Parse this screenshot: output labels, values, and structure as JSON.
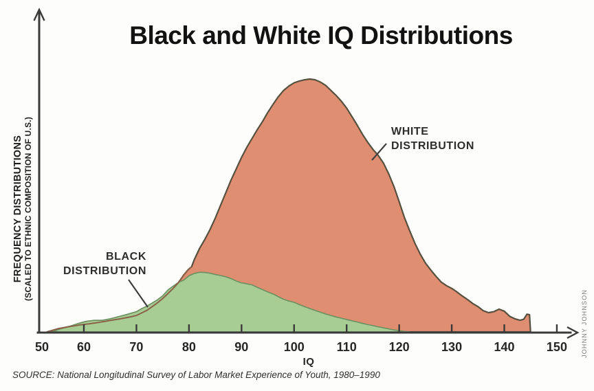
{
  "chart_data": {
    "type": "area",
    "title": "Black and White IQ Distributions",
    "xlabel": "IQ",
    "ylabel": "FREQUENCY DISTRIBUTIONS (SCALED TO ETHNIC COMPOSITION OF U.S.)",
    "ylabel_lines": [
      "FREQUENCY DISTRIBUTIONS",
      "(SCALED TO ETHNIC COMPOSITION OF U.S.)"
    ],
    "xlim": [
      50,
      150
    ],
    "x_ticks": [
      50,
      60,
      70,
      80,
      90,
      100,
      110,
      120,
      130,
      140,
      150
    ],
    "grid": false,
    "y_axis_unlabeled": true,
    "source": "SOURCE: National Longitudinal Survey of Labor Market Experience of Youth, 1980–1990",
    "credit": "JOHNNY JOHNSON",
    "series": [
      {
        "name": "WHITE DISTRIBUTION",
        "label_lines": [
          "WHITE",
          "DISTRIBUTION"
        ],
        "fill": "#e08e71",
        "outline": "#57503f",
        "outline_through_green": "#8a6248",
        "points": [
          [
            53,
            0
          ],
          [
            55,
            0.012
          ],
          [
            57,
            0.02
          ],
          [
            59,
            0.027
          ],
          [
            61,
            0.032
          ],
          [
            63,
            0.038
          ],
          [
            65,
            0.045
          ],
          [
            67,
            0.052
          ],
          [
            69,
            0.06
          ],
          [
            70,
            0.065
          ],
          [
            71,
            0.075
          ],
          [
            72,
            0.085
          ],
          [
            73,
            0.1
          ],
          [
            74,
            0.115
          ],
          [
            75,
            0.132
          ],
          [
            76,
            0.152
          ],
          [
            77,
            0.172
          ],
          [
            78,
            0.195
          ],
          [
            79,
            0.225
          ],
          [
            79.8,
            0.245
          ],
          [
            80.5,
            0.258
          ],
          [
            81,
            0.285
          ],
          [
            82,
            0.33
          ],
          [
            83,
            0.365
          ],
          [
            84,
            0.405
          ],
          [
            85,
            0.45
          ],
          [
            86,
            0.5
          ],
          [
            87,
            0.55
          ],
          [
            88,
            0.6
          ],
          [
            89,
            0.645
          ],
          [
            90,
            0.69
          ],
          [
            91,
            0.73
          ],
          [
            92,
            0.765
          ],
          [
            93,
            0.8
          ],
          [
            94,
            0.832
          ],
          [
            95,
            0.868
          ],
          [
            96,
            0.9
          ],
          [
            97,
            0.93
          ],
          [
            98,
            0.955
          ],
          [
            99,
            0.972
          ],
          [
            100,
            0.985
          ],
          [
            101,
            0.992
          ],
          [
            102,
            0.997
          ],
          [
            103,
            1.0
          ],
          [
            104,
            0.997
          ],
          [
            105,
            0.988
          ],
          [
            106,
            0.975
          ],
          [
            107,
            0.955
          ],
          [
            108,
            0.935
          ],
          [
            109,
            0.912
          ],
          [
            110,
            0.885
          ],
          [
            111,
            0.852
          ],
          [
            112,
            0.818
          ],
          [
            113,
            0.782
          ],
          [
            114,
            0.75
          ],
          [
            115,
            0.722
          ],
          [
            116,
            0.698
          ],
          [
            117,
            0.668
          ],
          [
            118,
            0.625
          ],
          [
            119,
            0.575
          ],
          [
            120,
            0.515
          ],
          [
            121,
            0.452
          ],
          [
            122,
            0.4
          ],
          [
            123,
            0.35
          ],
          [
            124,
            0.308
          ],
          [
            125,
            0.272
          ],
          [
            126,
            0.245
          ],
          [
            127,
            0.22
          ],
          [
            128,
            0.197
          ],
          [
            129,
            0.183
          ],
          [
            130,
            0.172
          ],
          [
            131,
            0.158
          ],
          [
            132,
            0.142
          ],
          [
            133,
            0.128
          ],
          [
            134,
            0.112
          ],
          [
            135,
            0.1
          ],
          [
            136,
            0.084
          ],
          [
            137,
            0.076
          ],
          [
            138,
            0.08
          ],
          [
            139,
            0.09
          ],
          [
            140,
            0.082
          ],
          [
            141,
            0.062
          ],
          [
            142,
            0.052
          ],
          [
            143,
            0.046
          ],
          [
            143.7,
            0.05
          ],
          [
            144.3,
            0.07
          ],
          [
            144.8,
            0.068
          ],
          [
            145,
            0
          ]
        ]
      },
      {
        "name": "BLACK DISTRIBUTION",
        "label_lines": [
          "BLACK",
          "DISTRIBUTION"
        ],
        "fill": "#a7cd95",
        "outline": "#6f9161",
        "points": [
          [
            54,
            0
          ],
          [
            55.5,
            0.012
          ],
          [
            57,
            0.02
          ],
          [
            59,
            0.034
          ],
          [
            60.5,
            0.042
          ],
          [
            62,
            0.046
          ],
          [
            63.5,
            0.046
          ],
          [
            65,
            0.052
          ],
          [
            66.5,
            0.06
          ],
          [
            68,
            0.068
          ],
          [
            70,
            0.08
          ],
          [
            71,
            0.092
          ],
          [
            72,
            0.102
          ],
          [
            73,
            0.114
          ],
          [
            74,
            0.127
          ],
          [
            75,
            0.143
          ],
          [
            76,
            0.166
          ],
          [
            77,
            0.181
          ],
          [
            78,
            0.196
          ],
          [
            79,
            0.205
          ],
          [
            80,
            0.222
          ],
          [
            81,
            0.231
          ],
          [
            82,
            0.236
          ],
          [
            83,
            0.235
          ],
          [
            84,
            0.232
          ],
          [
            85,
            0.227
          ],
          [
            86,
            0.223
          ],
          [
            87,
            0.218
          ],
          [
            88,
            0.211
          ],
          [
            89,
            0.201
          ],
          [
            90,
            0.194
          ],
          [
            91,
            0.19
          ],
          [
            92,
            0.186
          ],
          [
            93,
            0.176
          ],
          [
            94,
            0.167
          ],
          [
            95,
            0.158
          ],
          [
            96,
            0.15
          ],
          [
            97,
            0.139
          ],
          [
            98,
            0.129
          ],
          [
            99,
            0.122
          ],
          [
            100,
            0.117
          ],
          [
            101,
            0.108
          ],
          [
            102,
            0.1
          ],
          [
            103,
            0.092
          ],
          [
            104,
            0.085
          ],
          [
            105,
            0.078
          ],
          [
            106,
            0.071
          ],
          [
            107,
            0.065
          ],
          [
            108,
            0.059
          ],
          [
            109,
            0.054
          ],
          [
            110,
            0.049
          ],
          [
            111,
            0.044
          ],
          [
            112,
            0.039
          ],
          [
            113,
            0.034
          ],
          [
            114,
            0.029
          ],
          [
            115,
            0.025
          ],
          [
            116,
            0.02
          ],
          [
            117,
            0.016
          ],
          [
            118,
            0.012
          ],
          [
            119,
            0.008
          ],
          [
            120,
            0.005
          ],
          [
            121,
            0.002
          ],
          [
            122,
            0
          ]
        ]
      }
    ]
  }
}
